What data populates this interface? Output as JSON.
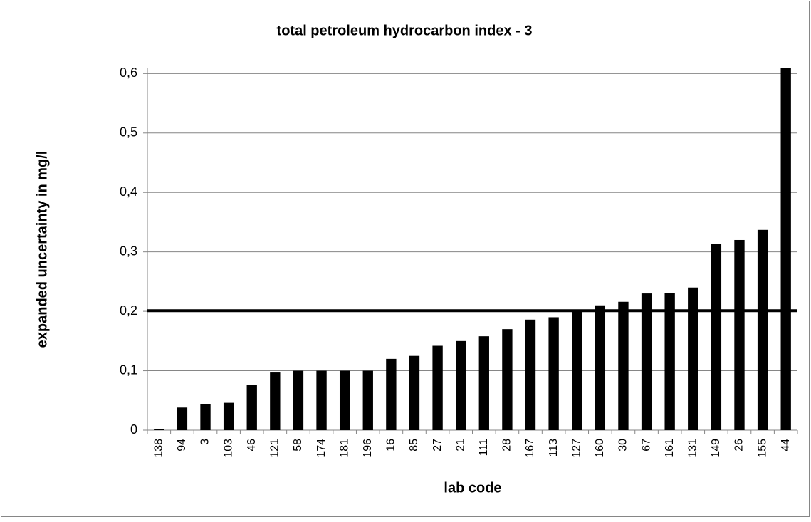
{
  "chart_data": {
    "type": "bar",
    "title": "total petroleum hydrocarbon index - 3",
    "x_label": "lab code",
    "y_label": "expanded uncertainty in mg/l",
    "categories": [
      "138",
      "94",
      "3",
      "103",
      "46",
      "121",
      "58",
      "174",
      "181",
      "196",
      "16",
      "85",
      "27",
      "21",
      "111",
      "28",
      "167",
      "113",
      "127",
      "160",
      "30",
      "67",
      "161",
      "131",
      "149",
      "26",
      "155",
      "44"
    ],
    "values": [
      0.002,
      0.038,
      0.044,
      0.046,
      0.076,
      0.097,
      0.1,
      0.1,
      0.1,
      0.1,
      0.12,
      0.125,
      0.142,
      0.15,
      0.158,
      0.17,
      0.186,
      0.19,
      0.2,
      0.21,
      0.216,
      0.23,
      0.231,
      0.24,
      0.313,
      0.32,
      0.337,
      0.61
    ],
    "color": "#000000",
    "reference_line": 0.201,
    "ylim": [
      0,
      0.61
    ],
    "yticks": [
      0,
      {
        "value": 0.1,
        "label": "0,1"
      },
      {
        "value": 0.2,
        "label": "0,2"
      },
      {
        "value": 0.3,
        "label": "0,3"
      },
      {
        "value": 0.4,
        "label": "0,4"
      },
      {
        "value": 0.5,
        "label": "0,5"
      },
      {
        "value": 0.6,
        "label": "0,6"
      }
    ],
    "grid": true
  }
}
